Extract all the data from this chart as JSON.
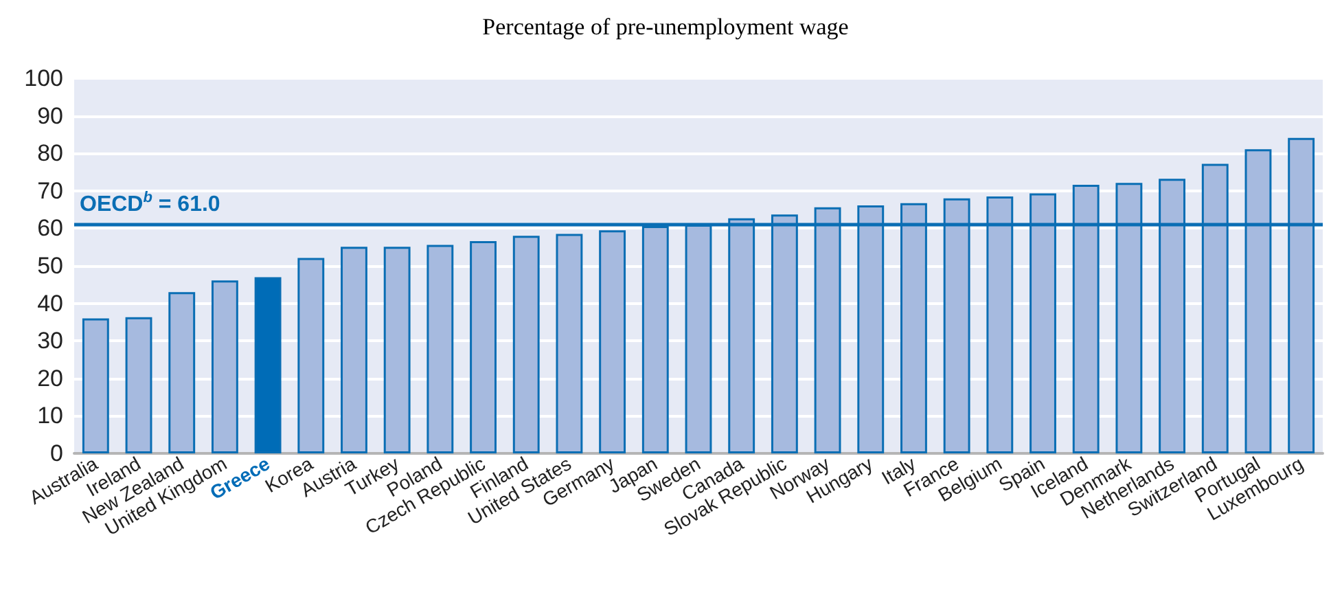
{
  "chart_data": {
    "type": "bar",
    "title": "Percentage of pre-unemployment wage",
    "categories": [
      "Australia",
      "Ireland",
      "New Zealand",
      "United Kingdom",
      "Greece",
      "Korea",
      "Austria",
      "Turkey",
      "Poland",
      "Czech Republic",
      "Finland",
      "United States",
      "Germany",
      "Japan",
      "Sweden",
      "Canada",
      "Slovak Republic",
      "Norway",
      "Hungary",
      "Italy",
      "France",
      "Belgium",
      "Spain",
      "Iceland",
      "Denmark",
      "Netherlands",
      "Switzerland",
      "Portugal",
      "Luxembourg"
    ],
    "values": [
      36,
      36.3,
      43,
      46.1,
      47,
      52.1,
      55.1,
      55.1,
      55.6,
      56.6,
      58,
      58.5,
      59.5,
      60.6,
      61,
      62.7,
      63.7,
      65.6,
      66.1,
      66.7,
      68,
      68.5,
      69.3,
      71.6,
      72.1,
      73.2,
      77.2,
      81.1,
      84.1
    ],
    "colors": [
      "#a6badf",
      "#a6badf",
      "#a6badf",
      "#a6badf",
      "#006cb7",
      "#a6badf",
      "#a6badf",
      "#a6badf",
      "#a6badf",
      "#a6badf",
      "#a6badf",
      "#a6badf",
      "#a6badf",
      "#a6badf",
      "#a6badf",
      "#a6badf",
      "#a6badf",
      "#a6badf",
      "#a6badf",
      "#a6badf",
      "#a6badf",
      "#a6badf",
      "#a6badf",
      "#a6badf",
      "#a6badf",
      "#a6badf",
      "#a6badf",
      "#a6badf",
      "#a6badf"
    ],
    "ylim": [
      0,
      100
    ],
    "yticks": [
      0,
      10,
      20,
      30,
      40,
      50,
      60,
      70,
      80,
      90,
      100
    ],
    "grid": "y",
    "ref_lines": [
      {
        "axis": "y",
        "value": 61.0,
        "label": "OECD$^{b}$ = 61.0",
        "color": "#0a6eb4"
      }
    ]
  }
}
